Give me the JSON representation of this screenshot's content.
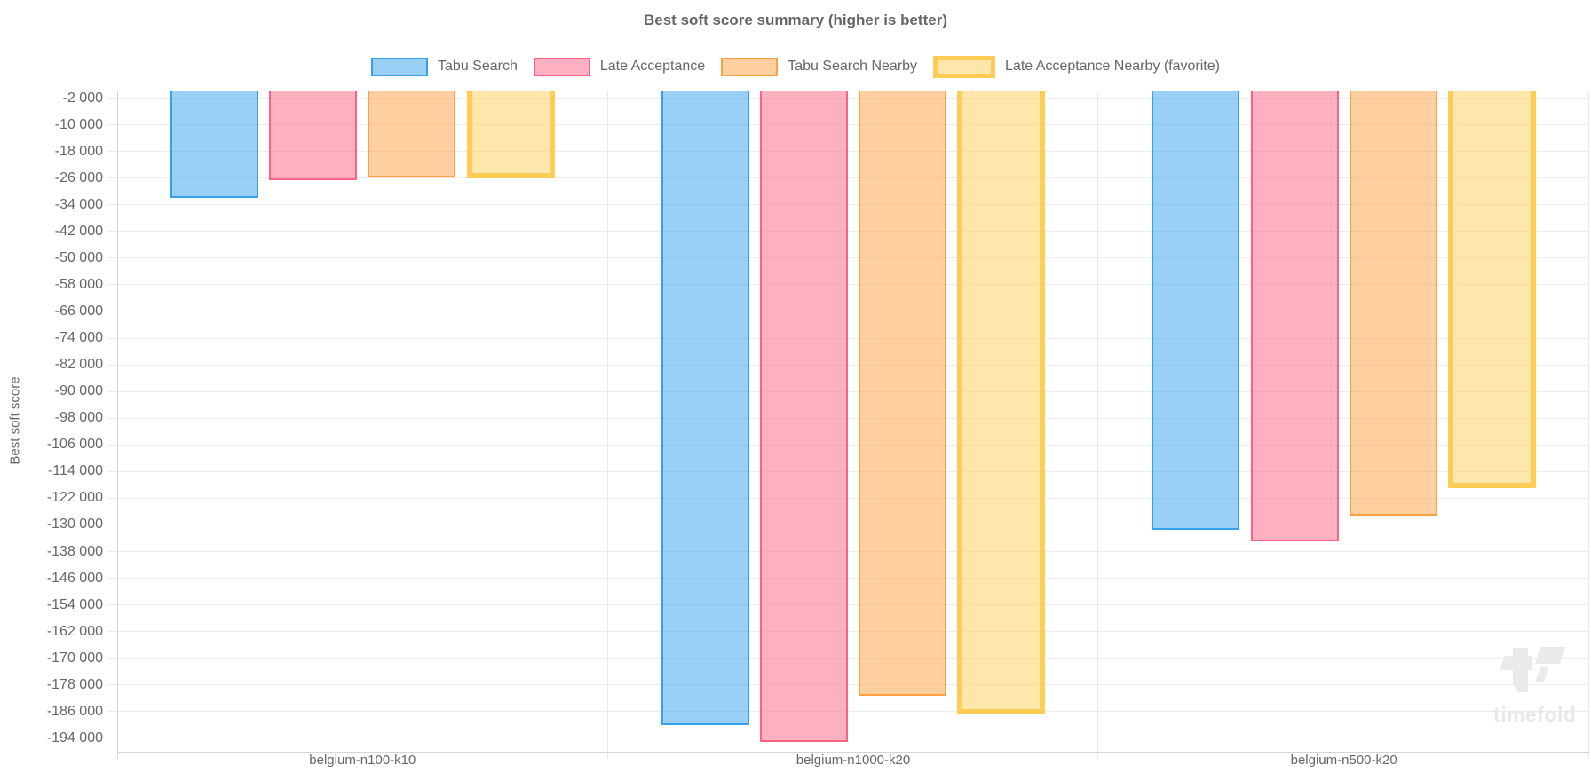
{
  "watermark": {
    "text": "timefold"
  },
  "chart_data": {
    "type": "bar",
    "title": "Best soft score summary (higher is better)",
    "ylabel": "Best soft score",
    "xlabel": "",
    "legend_position": "top",
    "grid": true,
    "categories": [
      "belgium-n100-k10",
      "belgium-n1000-k20",
      "belgium-n500-k20"
    ],
    "series": [
      {
        "name": "Tabu Search",
        "border_color": "#36A2EB",
        "fill_color": "rgba(54,162,235,0.5)",
        "favorite": false,
        "values": [
          -31900,
          -190000,
          -131500
        ]
      },
      {
        "name": "Late Acceptance",
        "border_color": "#FF6384",
        "fill_color": "rgba(255,99,132,0.5)",
        "favorite": false,
        "values": [
          -26700,
          -195000,
          -135000
        ]
      },
      {
        "name": "Tabu Search Nearby",
        "border_color": "#FF9F40",
        "fill_color": "rgba(255,159,64,0.5)",
        "favorite": false,
        "values": [
          -25900,
          -181300,
          -127100
        ]
      },
      {
        "name": "Late Acceptance Nearby (favorite)",
        "border_color": "#FFCD56",
        "fill_color": "rgba(255,205,86,0.5)",
        "favorite": true,
        "values": [
          -26100,
          -186700,
          -119000
        ]
      }
    ],
    "ylim": [
      -198000,
      0
    ],
    "y_ticks": [
      -2000,
      -10000,
      -18000,
      -26000,
      -34000,
      -42000,
      -50000,
      -58000,
      -66000,
      -74000,
      -82000,
      -90000,
      -98000,
      -106000,
      -114000,
      -122000,
      -130000,
      -138000,
      -146000,
      -154000,
      -162000,
      -170000,
      -178000,
      -186000,
      -194000
    ],
    "y_tick_format": "space-grouped thousands (e.g. -2 000)",
    "axis_text_color": "#666666"
  }
}
